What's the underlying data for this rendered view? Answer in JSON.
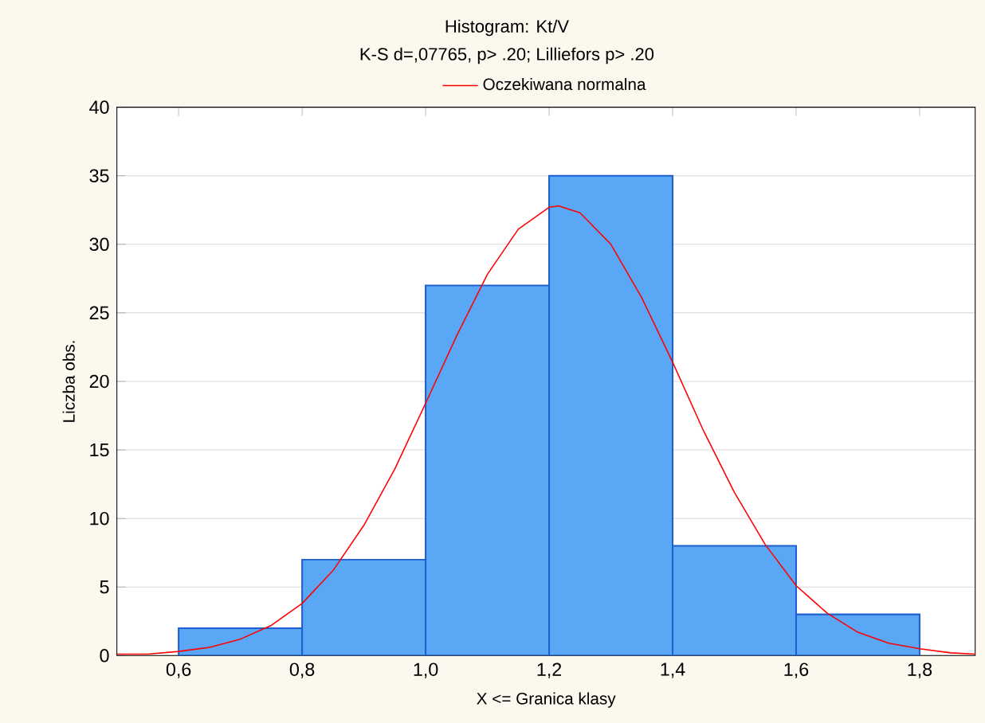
{
  "chart_data": {
    "type": "histogram",
    "title": "Histogram: Kt/V",
    "subtitle": "K-S d=,07765, p> .20; Lilliefors p> .20",
    "xlabel": "X <= Granica klasy",
    "ylabel": "Liczba obs.",
    "bins": [
      0.6,
      0.8,
      1.0,
      1.2,
      1.4,
      1.6,
      1.8
    ],
    "values": [
      2,
      7,
      27,
      35,
      8,
      3
    ],
    "color": "#5aa8f5",
    "series": [
      {
        "name": "Oczekiwana normalna",
        "type": "line",
        "color": "#ff0000",
        "x": [
          0.5,
          0.55,
          0.6,
          0.65,
          0.7,
          0.75,
          0.8,
          0.85,
          0.9,
          0.95,
          1.0,
          1.05,
          1.1,
          1.15,
          1.2,
          1.215,
          1.25,
          1.3,
          1.35,
          1.4,
          1.45,
          1.5,
          1.55,
          1.6,
          1.65,
          1.7,
          1.75,
          1.8,
          1.85,
          1.89
        ],
        "values": [
          0.1,
          0.1,
          0.3,
          0.6,
          1.2,
          2.2,
          3.8,
          6.2,
          9.5,
          13.6,
          18.4,
          23.3,
          27.8,
          31.1,
          32.7,
          32.8,
          32.3,
          30.0,
          26.1,
          21.4,
          16.4,
          11.9,
          8.1,
          5.1,
          3.1,
          1.7,
          0.9,
          0.5,
          0.2,
          0.1
        ]
      }
    ],
    "xlim": [
      0.5,
      1.89
    ],
    "ylim": [
      0,
      40
    ],
    "xticks": [
      {
        "value": 0.6,
        "label": "0,6"
      },
      {
        "value": 0.8,
        "label": "0,8"
      },
      {
        "value": 1.0,
        "label": "1,0"
      },
      {
        "value": 1.2,
        "label": "1,2"
      },
      {
        "value": 1.4,
        "label": "1,4"
      },
      {
        "value": 1.6,
        "label": "1,6"
      },
      {
        "value": 1.8,
        "label": "1,8"
      }
    ],
    "yticks": [
      0,
      5,
      10,
      15,
      20,
      25,
      30,
      35,
      40
    ],
    "grid": "y",
    "legend": "top"
  }
}
